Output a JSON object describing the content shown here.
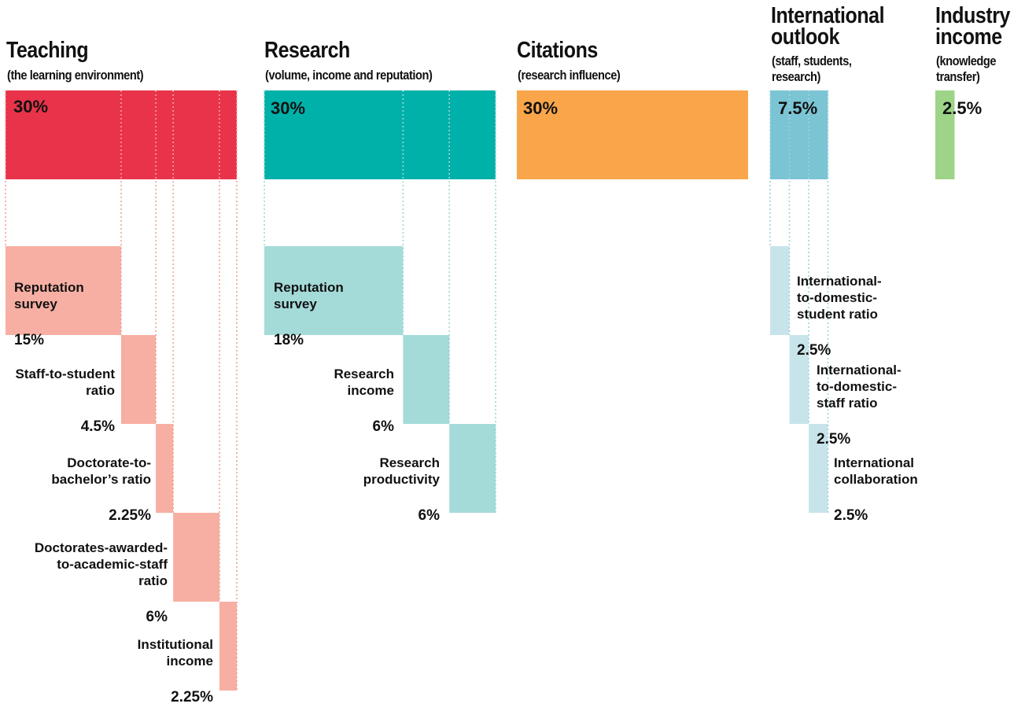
{
  "colors": {
    "teaching": "#E8334A",
    "teaching_light": "#F7AFA3",
    "research": "#00B1AA",
    "research_light": "#A4DBD9",
    "citations": "#F9A64A",
    "international": "#7BC4D4",
    "international_light": "#C8E4EB",
    "industry": "#9ED487"
  },
  "chart_data": {
    "type": "bar",
    "categories": [
      {
        "id": "teaching",
        "title": "Teaching",
        "subtitle": "(the learning environment)",
        "value_label": "30%",
        "value": 30,
        "components": [
          {
            "name": "Reputation survey",
            "value_label": "15%",
            "value": 15
          },
          {
            "name": "Staff-to-student ratio",
            "value_label": "4.5%",
            "value": 4.5
          },
          {
            "name": "Doctorate-to-bachelor’s ratio",
            "value_label": "2.25%",
            "value": 2.25
          },
          {
            "name": "Doctorates-awarded-to-academic-staff ratio",
            "value_label": "6%",
            "value": 6
          },
          {
            "name": "Institutional income",
            "value_label": "2.25%",
            "value": 2.25
          }
        ]
      },
      {
        "id": "research",
        "title": "Research",
        "subtitle": "(volume, income and reputation)",
        "value_label": "30%",
        "value": 30,
        "components": [
          {
            "name": "Reputation survey",
            "value_label": "18%",
            "value": 18
          },
          {
            "name": "Research income",
            "value_label": "6%",
            "value": 6
          },
          {
            "name": "Research productivity",
            "value_label": "6%",
            "value": 6
          }
        ]
      },
      {
        "id": "citations",
        "title": "Citations",
        "subtitle": "(research influence)",
        "value_label": "30%",
        "value": 30,
        "components": []
      },
      {
        "id": "international",
        "title": "International outlook",
        "subtitle": "(staff, students, research)",
        "value_label": "7.5%",
        "value": 7.5,
        "components": [
          {
            "name": "International-to-domestic-student ratio",
            "value_label": "2.5%",
            "value": 2.5
          },
          {
            "name": "International-to-domestic-staff ratio",
            "value_label": "2.5%",
            "value": 2.5
          },
          {
            "name": "International collaboration",
            "value_label": "2.5%",
            "value": 2.5
          }
        ]
      },
      {
        "id": "industry",
        "title": "Industry income",
        "subtitle": "(knowledge transfer)",
        "value_label": "2.5%",
        "value": 2.5,
        "components": []
      }
    ]
  },
  "labels": {
    "teaching": {
      "title": "Teaching",
      "subtitle": "(the learning environment)",
      "pct": "30%",
      "c0": {
        "name": "Reputation\nsurvey",
        "pct": "15%"
      },
      "c1": {
        "name": "Staff-to-student\nratio",
        "pct": "4.5%"
      },
      "c2": {
        "name": "Doctorate-to-\nbachelor’s ratio",
        "pct": "2.25%"
      },
      "c3": {
        "name": "Doctorates-awarded-\nto-academic-staff\nratio",
        "pct": "6%"
      },
      "c4": {
        "name": "Institutional\nincome",
        "pct": "2.25%"
      }
    },
    "research": {
      "title": "Research",
      "subtitle": "(volume, income and reputation)",
      "pct": "30%",
      "c0": {
        "name": "Reputation\nsurvey",
        "pct": "18%"
      },
      "c1": {
        "name": "Research\nincome",
        "pct": "6%"
      },
      "c2": {
        "name": "Research\nproductivity",
        "pct": "6%"
      }
    },
    "citations": {
      "title": "Citations",
      "subtitle": "(research influence)",
      "pct": "30%"
    },
    "international": {
      "title1": "International",
      "title2": "outlook",
      "subtitle1": "(staff, students,",
      "subtitle2": "research)",
      "pct": "7.5%",
      "c0": {
        "name": "International-\nto-domestic-\nstudent ratio",
        "pct": "2.5%"
      },
      "c1": {
        "name": "International-\nto-domestic-\nstaff ratio",
        "pct": "2.5%"
      },
      "c2": {
        "name": "International\ncollaboration",
        "pct": "2.5%"
      }
    },
    "industry": {
      "title1": "Industry",
      "title2": "income",
      "subtitle1": "(knowledge",
      "subtitle2": "transfer)",
      "pct": "2.5%"
    }
  }
}
